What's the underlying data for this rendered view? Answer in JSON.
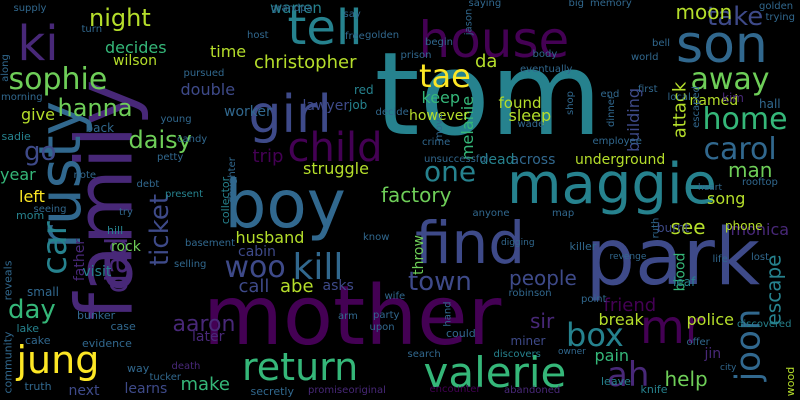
{
  "word_cloud": {
    "background": "#000000",
    "palette": {
      "p1": "#440154",
      "p2": "#482878",
      "p3": "#3e4a89",
      "p4": "#31688e",
      "p5": "#26828e",
      "p6": "#1f9e89",
      "p7": "#35b779",
      "p8": "#6ece58",
      "p9": "#b5de2b",
      "p10": "#fde725"
    },
    "words": [
      {
        "text": "tom",
        "color": "#26828e"
      },
      {
        "text": "family",
        "color": "#482878"
      },
      {
        "text": "park",
        "color": "#3e4a89"
      },
      {
        "text": "mother",
        "color": "#440154"
      },
      {
        "text": "boy",
        "color": "#31688e"
      },
      {
        "text": "maggie",
        "color": "#26828e"
      },
      {
        "text": "find",
        "color": "#3e4a89"
      },
      {
        "text": "house",
        "color": "#440154"
      },
      {
        "text": "son",
        "color": "#31688e"
      },
      {
        "text": "tell",
        "color": "#26828e"
      },
      {
        "text": "rusty",
        "color": "#31688e"
      },
      {
        "text": "girl",
        "color": "#3e4a89"
      },
      {
        "text": "valerie",
        "color": "#35b779"
      },
      {
        "text": "return",
        "color": "#35b779"
      },
      {
        "text": "ki",
        "color": "#482878"
      },
      {
        "text": "mr",
        "color": "#440154"
      },
      {
        "text": "jung",
        "color": "#fde725"
      },
      {
        "text": "child",
        "color": "#440154"
      },
      {
        "text": "kill",
        "color": "#31688e"
      },
      {
        "text": "car",
        "color": "#26828e"
      },
      {
        "text": "sophie",
        "color": "#6ece58"
      },
      {
        "text": "woo",
        "color": "#3e4a89"
      },
      {
        "text": "home",
        "color": "#35b779"
      },
      {
        "text": "one",
        "color": "#26828e"
      },
      {
        "text": "joon",
        "color": "#31688e"
      },
      {
        "text": "ah",
        "color": "#482878"
      },
      {
        "text": "carol",
        "color": "#31688e"
      },
      {
        "text": "box",
        "color": "#26828e"
      },
      {
        "text": "tae",
        "color": "#fde725"
      },
      {
        "text": "daisy",
        "color": "#6ece58"
      },
      {
        "text": "town",
        "color": "#3e4a89"
      },
      {
        "text": "away",
        "color": "#6ece58"
      },
      {
        "text": "dad",
        "color": "#482878"
      },
      {
        "text": "hanna",
        "color": "#6ece58"
      },
      {
        "text": "take",
        "color": "#3e4a89"
      },
      {
        "text": "night",
        "color": "#b5de2b"
      },
      {
        "text": "factory",
        "color": "#6ece58"
      },
      {
        "text": "ticket",
        "color": "#3e4a89"
      },
      {
        "text": "go",
        "color": "#3e4a89"
      },
      {
        "text": "aaron",
        "color": "#482878"
      },
      {
        "text": "day",
        "color": "#35b779"
      },
      {
        "text": "moon",
        "color": "#b5de2b"
      },
      {
        "text": "people",
        "color": "#3e4a89"
      },
      {
        "text": "man",
        "color": "#6ece58"
      },
      {
        "text": "christopher",
        "color": "#b5de2b"
      },
      {
        "text": "monica",
        "color": "#482878"
      },
      {
        "text": "da",
        "color": "#b5de2b"
      },
      {
        "text": "make",
        "color": "#35b779"
      },
      {
        "text": "husband",
        "color": "#b5de2b"
      },
      {
        "text": "call",
        "color": "#3e4a89"
      },
      {
        "text": "abe",
        "color": "#b5de2b"
      },
      {
        "text": "sir",
        "color": "#482878"
      },
      {
        "text": "escape",
        "color": "#26828e"
      },
      {
        "text": "help",
        "color": "#6ece58"
      },
      {
        "text": "see",
        "color": "#b5de2b"
      },
      {
        "text": "friend",
        "color": "#440154"
      },
      {
        "text": "attack",
        "color": "#b5de2b"
      },
      {
        "text": "decides",
        "color": "#35b779"
      },
      {
        "text": "time",
        "color": "#b5de2b"
      },
      {
        "text": "warren",
        "color": "#26828e"
      },
      {
        "text": "double",
        "color": "#3e4a89"
      },
      {
        "text": "give",
        "color": "#b5de2b"
      },
      {
        "text": "wilson",
        "color": "#b5de2b"
      },
      {
        "text": "keep",
        "color": "#35b779"
      },
      {
        "text": "found",
        "color": "#b5de2b"
      },
      {
        "text": "sleep",
        "color": "#b5de2b"
      },
      {
        "text": "melanie",
        "color": "#35b779"
      },
      {
        "text": "struggle",
        "color": "#b5de2b"
      },
      {
        "text": "trip",
        "color": "#440154"
      },
      {
        "text": "left",
        "color": "#fde725"
      },
      {
        "text": "year",
        "color": "#35b779"
      },
      {
        "text": "father",
        "color": "#482878"
      },
      {
        "text": "pain",
        "color": "#35b779"
      },
      {
        "text": "break",
        "color": "#b5de2b"
      },
      {
        "text": "police",
        "color": "#b5de2b"
      },
      {
        "text": "song",
        "color": "#b5de2b"
      },
      {
        "text": "underground",
        "color": "#b5de2b"
      },
      {
        "text": "building",
        "color": "#3e4a89"
      },
      {
        "text": "lawyer",
        "color": "#3e4a89"
      },
      {
        "text": "worker",
        "color": "#31688e"
      },
      {
        "text": "named",
        "color": "#b5de2b"
      },
      {
        "text": "however",
        "color": "#b5de2b"
      },
      {
        "text": "across",
        "color": "#31688e"
      },
      {
        "text": "blood",
        "color": "#35b779"
      },
      {
        "text": "dead",
        "color": "#26828e"
      },
      {
        "text": "throw",
        "color": "#6ece58"
      },
      {
        "text": "asks",
        "color": "#3e4a89"
      },
      {
        "text": "learns",
        "color": "#3e4a89"
      },
      {
        "text": "next",
        "color": "#3e4a89"
      },
      {
        "text": "cabin",
        "color": "#3e4a89"
      },
      {
        "text": "rock",
        "color": "#6ece58"
      },
      {
        "text": "later",
        "color": "#482878"
      },
      {
        "text": "job",
        "color": "#26828e"
      },
      {
        "text": "red",
        "color": "#26828e"
      },
      {
        "text": "hall",
        "color": "#31688e"
      },
      {
        "text": "kim",
        "color": "#482878"
      },
      {
        "text": "phone",
        "color": "#b5de2b"
      },
      {
        "text": "burnt",
        "color": "#3e4a89"
      },
      {
        "text": "leaf",
        "color": "#26828e"
      },
      {
        "text": "jin",
        "color": "#482878"
      },
      {
        "text": "wood",
        "color": "#b5de2b"
      },
      {
        "text": "knife",
        "color": "#26828e"
      },
      {
        "text": "miner",
        "color": "#3e4a89"
      },
      {
        "text": "visit",
        "color": "#26828e"
      },
      {
        "text": "small",
        "color": "#31688e"
      },
      {
        "text": "community",
        "color": "#31688e"
      },
      {
        "text": "reveals",
        "color": "#31688e"
      },
      {
        "text": "mom",
        "color": "#26828e"
      },
      {
        "text": "lake",
        "color": "#26828e"
      },
      {
        "text": "sadie",
        "color": "#26828e"
      },
      {
        "text": "back",
        "color": "#31688e"
      },
      {
        "text": "hill",
        "color": "#26828e"
      },
      {
        "text": "bunker",
        "color": "#31688e"
      },
      {
        "text": "evidence",
        "color": "#31688e"
      },
      {
        "text": "case",
        "color": "#31688e"
      },
      {
        "text": "cake",
        "color": "#31688e"
      },
      {
        "text": "truth",
        "color": "#31688e"
      },
      {
        "text": "tucker",
        "color": "#31688e"
      },
      {
        "text": "way",
        "color": "#31688e"
      },
      {
        "text": "death",
        "color": "#482878"
      },
      {
        "text": "secretly",
        "color": "#31688e"
      },
      {
        "text": "promise",
        "color": "#482878"
      },
      {
        "text": "original",
        "color": "#482878"
      },
      {
        "text": "encounter",
        "color": "#440154"
      },
      {
        "text": "abandoned",
        "color": "#482878"
      },
      {
        "text": "leave",
        "color": "#26828e"
      },
      {
        "text": "city",
        "color": "#31688e"
      },
      {
        "text": "offer",
        "color": "#31688e"
      },
      {
        "text": "owner",
        "color": "#31688e"
      },
      {
        "text": "discovers",
        "color": "#26828e"
      },
      {
        "text": "could",
        "color": "#31688e"
      },
      {
        "text": "search",
        "color": "#31688e"
      },
      {
        "text": "hand",
        "color": "#31688e"
      },
      {
        "text": "party",
        "color": "#31688e"
      },
      {
        "text": "arm",
        "color": "#31688e"
      },
      {
        "text": "upon",
        "color": "#31688e"
      },
      {
        "text": "robinson",
        "color": "#31688e"
      },
      {
        "text": "point",
        "color": "#31688e"
      },
      {
        "text": "discovered",
        "color": "#26828e"
      },
      {
        "text": "lost",
        "color": "#31688e"
      },
      {
        "text": "life",
        "color": "#31688e"
      },
      {
        "text": "revenge",
        "color": "#31688e"
      },
      {
        "text": "killer",
        "color": "#31688e"
      },
      {
        "text": "digging",
        "color": "#31688e"
      },
      {
        "text": "anyone",
        "color": "#31688e"
      },
      {
        "text": "map",
        "color": "#31688e"
      },
      {
        "text": "ruth",
        "color": "#31688e"
      },
      {
        "text": "heart",
        "color": "#31688e"
      },
      {
        "text": "rooftop",
        "color": "#31688e"
      },
      {
        "text": "present",
        "color": "#26828e"
      },
      {
        "text": "collector",
        "color": "#26828e"
      },
      {
        "text": "basement",
        "color": "#31688e"
      },
      {
        "text": "selling",
        "color": "#31688e"
      },
      {
        "text": "daughter",
        "color": "#31688e"
      },
      {
        "text": "candy",
        "color": "#31688e"
      },
      {
        "text": "young",
        "color": "#31688e"
      },
      {
        "text": "petty",
        "color": "#31688e"
      },
      {
        "text": "debt",
        "color": "#31688e"
      },
      {
        "text": "seeing",
        "color": "#31688e"
      },
      {
        "text": "note",
        "color": "#31688e"
      },
      {
        "text": "try",
        "color": "#31688e"
      },
      {
        "text": "know",
        "color": "#31688e"
      },
      {
        "text": "wife",
        "color": "#31688e"
      },
      {
        "text": "crime",
        "color": "#31688e"
      },
      {
        "text": "decide",
        "color": "#31688e"
      },
      {
        "text": "unsuccessful",
        "color": "#31688e"
      },
      {
        "text": "move",
        "color": "#31688e"
      },
      {
        "text": "wade",
        "color": "#31688e"
      },
      {
        "text": "shop",
        "color": "#31688e"
      },
      {
        "text": "employee",
        "color": "#31688e"
      },
      {
        "text": "dinner",
        "color": "#31688e"
      },
      {
        "text": "escaped",
        "color": "#31688e"
      },
      {
        "text": "local",
        "color": "#31688e"
      },
      {
        "text": "world",
        "color": "#31688e"
      },
      {
        "text": "bell",
        "color": "#31688e"
      },
      {
        "text": "prison",
        "color": "#31688e"
      },
      {
        "text": "body",
        "color": "#31688e"
      },
      {
        "text": "eventually",
        "color": "#31688e"
      },
      {
        "text": "begin",
        "color": "#31688e"
      },
      {
        "text": "jason",
        "color": "#31688e"
      },
      {
        "text": "saying",
        "color": "#31688e"
      },
      {
        "text": "big",
        "color": "#31688e"
      },
      {
        "text": "memory",
        "color": "#31688e"
      },
      {
        "text": "golden",
        "color": "#31688e"
      },
      {
        "text": "trying",
        "color": "#31688e"
      },
      {
        "text": "supply",
        "color": "#31688e"
      },
      {
        "text": "along",
        "color": "#31688e"
      },
      {
        "text": "turn",
        "color": "#31688e"
      },
      {
        "text": "morning",
        "color": "#31688e"
      },
      {
        "text": "pursued",
        "color": "#31688e"
      },
      {
        "text": "grandpa",
        "color": "#31688e"
      },
      {
        "text": "host",
        "color": "#31688e"
      },
      {
        "text": "say",
        "color": "#31688e"
      },
      {
        "text": "free",
        "color": "#31688e"
      },
      {
        "text": "golden",
        "color": "#31688e"
      },
      {
        "text": "first",
        "color": "#31688e"
      },
      {
        "text": "end",
        "color": "#31688e"
      }
    ]
  }
}
